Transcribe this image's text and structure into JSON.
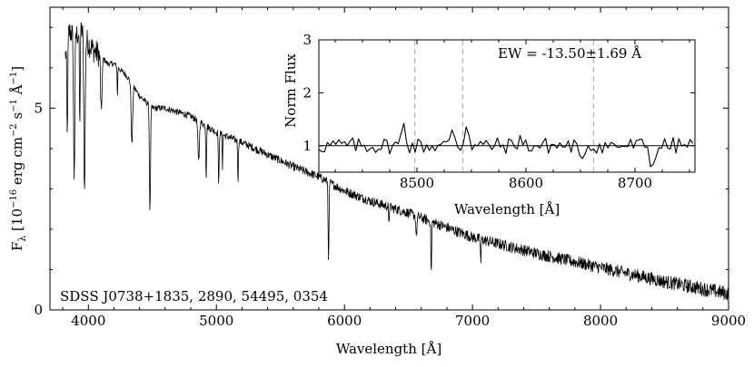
{
  "chart_data": [
    {
      "type": "line",
      "name": "main-spectrum",
      "xlabel": "Wavelength [Å]",
      "ylabel": "F",
      "ylabel_subscript": "λ",
      "ylabel_units": "[10",
      "ylabel_units_exp": "−16",
      "ylabel_units_b": "erg cm",
      "ylabel_units_exp2": "−2",
      "ylabel_units_c": "s",
      "ylabel_units_exp3": "−1",
      "ylabel_units_d": "Å",
      "ylabel_units_exp4": "−1",
      "ylabel_units_e": "]",
      "xlim": [
        3700,
        9000
      ],
      "ylim": [
        0,
        7.5
      ],
      "x_ticks": [
        4000,
        5000,
        6000,
        7000,
        8000,
        9000
      ],
      "x_tick_labels": [
        "4000",
        "5000",
        "6000",
        "7000",
        "8000",
        "9000"
      ],
      "y_ticks": [
        0,
        5
      ],
      "y_tick_labels": [
        "0",
        "5"
      ],
      "annotation": "SDSS J0738+1835, 2890, 54495, 0354",
      "continuum": {
        "x": [
          3820,
          3850,
          3900,
          3950,
          4000,
          4050,
          4100,
          4150,
          4200,
          4300,
          4400,
          4500,
          4600,
          4700,
          4800,
          4900,
          5000,
          5200,
          5400,
          5600,
          5800,
          6000,
          6200,
          6500,
          7000,
          7500,
          8000,
          8500,
          9000
        ],
        "y": [
          6.3,
          6.9,
          6.8,
          6.9,
          6.6,
          6.4,
          6.3,
          6.1,
          6.1,
          5.8,
          5.3,
          5.0,
          5.0,
          4.9,
          4.8,
          4.6,
          4.4,
          4.15,
          3.85,
          3.55,
          3.3,
          2.95,
          2.7,
          2.4,
          1.8,
          1.4,
          1.05,
          0.7,
          0.4
        ]
      },
      "absorption_lines": [
        {
          "x": 3835,
          "depth": 2.3,
          "width": 5
        },
        {
          "x": 3889,
          "depth": 3.5,
          "width": 7
        },
        {
          "x": 3933,
          "depth": 2.5,
          "width": 4
        },
        {
          "x": 3970,
          "depth": 3.9,
          "width": 7
        },
        {
          "x": 4101,
          "depth": 1.4,
          "width": 8
        },
        {
          "x": 4227,
          "depth": 0.8,
          "width": 3
        },
        {
          "x": 4340,
          "depth": 1.5,
          "width": 8
        },
        {
          "x": 4481,
          "depth": 2.6,
          "width": 6
        },
        {
          "x": 4861,
          "depth": 1.0,
          "width": 8
        },
        {
          "x": 4920,
          "depth": 1.3,
          "width": 4
        },
        {
          "x": 5018,
          "depth": 1.4,
          "width": 4
        },
        {
          "x": 5047,
          "depth": 0.8,
          "width": 3
        },
        {
          "x": 5169,
          "depth": 1.0,
          "width": 4
        },
        {
          "x": 5876,
          "depth": 1.9,
          "width": 5
        },
        {
          "x": 6347,
          "depth": 0.5,
          "width": 3
        },
        {
          "x": 6562,
          "depth": 0.5,
          "width": 6
        },
        {
          "x": 6678,
          "depth": 1.3,
          "width": 4
        },
        {
          "x": 7065,
          "depth": 0.6,
          "width": 4
        }
      ]
    },
    {
      "type": "line",
      "name": "inset-ca-triplet",
      "xlabel": "Wavelength [Å]",
      "ylabel": "Norm Flux",
      "xlim": [
        8410,
        8755
      ],
      "ylim": [
        0.5,
        3.0
      ],
      "x_ticks": [
        8500,
        8600,
        8700
      ],
      "x_tick_labels": [
        "8500",
        "8600",
        "8700"
      ],
      "y_ticks": [
        1,
        2,
        3
      ],
      "y_tick_labels": [
        "1",
        "2",
        "3"
      ],
      "annotation": "EW = -13.50±1.69 Å",
      "reference_level": 1.0,
      "dashed_lines": [
        8498,
        8542,
        8662
      ],
      "features": [
        {
          "x": 8488,
          "height": 0.45
        },
        {
          "x": 8533,
          "height": 0.35
        },
        {
          "x": 8546,
          "height": 0.45
        },
        {
          "x": 8594,
          "height": 0.15
        },
        {
          "x": 8650,
          "height": -0.35
        },
        {
          "x": 8716,
          "height": -0.45
        }
      ]
    }
  ]
}
